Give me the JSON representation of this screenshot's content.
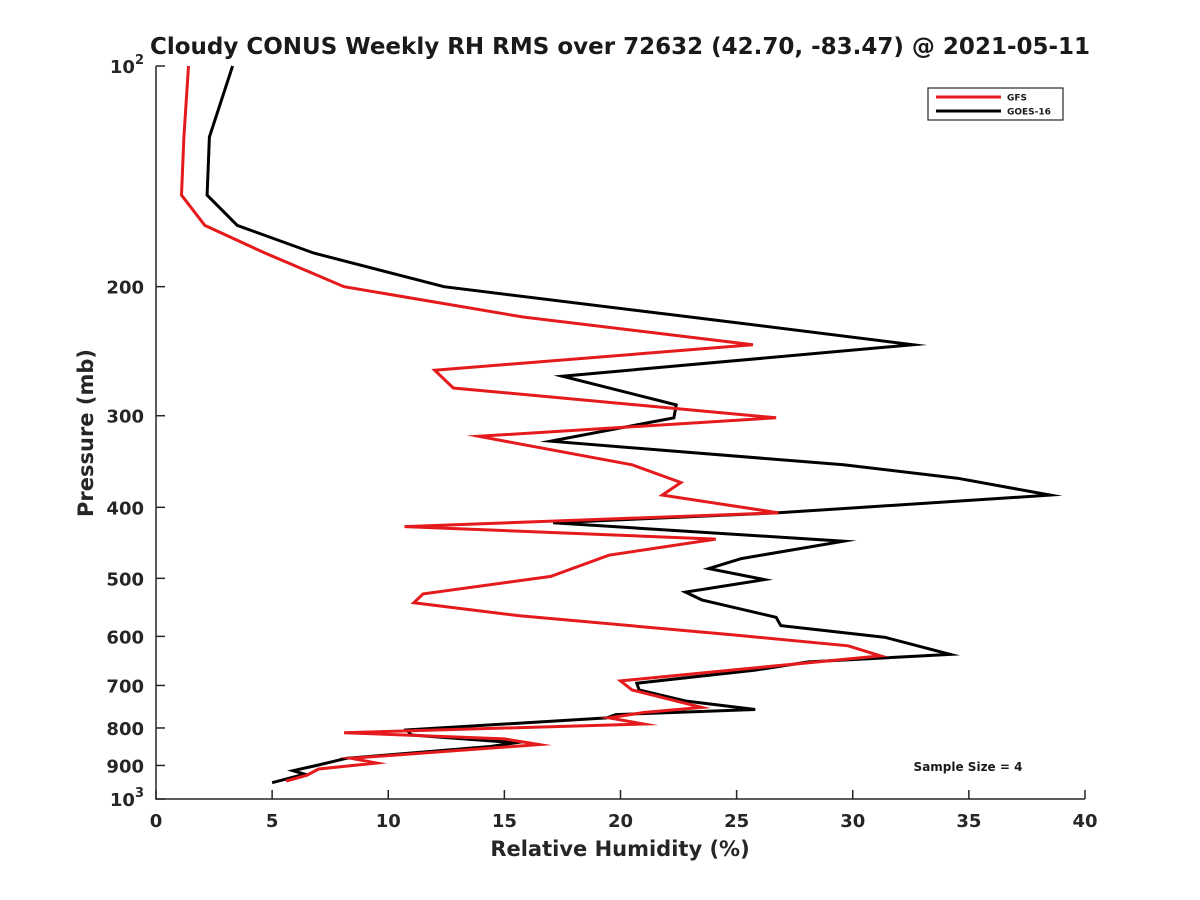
{
  "chart_data": {
    "type": "line",
    "title": "Cloudy CONUS Weekly RH RMS over 72632 (42.70, -83.47) @ 2021-05-11",
    "xlabel": "Relative Humidity (%)",
    "ylabel": "Pressure (mb)",
    "xlim": [
      0,
      40
    ],
    "ylim": [
      1000,
      100
    ],
    "y_scale": "log",
    "y_reversed": true,
    "grid": false,
    "legend_position": "top-right",
    "x_ticks": [
      0,
      5,
      10,
      15,
      20,
      25,
      30,
      35,
      40
    ],
    "y_ticks": [
      {
        "value": 100,
        "base": "10",
        "exp": "2"
      },
      {
        "value": 200,
        "label": "200"
      },
      {
        "value": 300,
        "label": "300"
      },
      {
        "value": 400,
        "label": "400"
      },
      {
        "value": 500,
        "label": "500"
      },
      {
        "value": 600,
        "label": "600"
      },
      {
        "value": 700,
        "label": "700"
      },
      {
        "value": 800,
        "label": "800"
      },
      {
        "value": 900,
        "label": "900"
      },
      {
        "value": 1000,
        "base": "10",
        "exp": "3"
      }
    ],
    "series": [
      {
        "name": "GFS",
        "color": "#e41a1c",
        "points": [
          [
            1.4,
            100
          ],
          [
            1.2,
            125
          ],
          [
            1.1,
            150
          ],
          [
            2.1,
            165
          ],
          [
            4.7,
            180
          ],
          [
            8.1,
            200
          ],
          [
            15.8,
            220
          ],
          [
            25.7,
            240
          ],
          [
            12.0,
            260
          ],
          [
            12.8,
            275
          ],
          [
            26.7,
            302
          ],
          [
            13.9,
            320
          ],
          [
            20.5,
            350
          ],
          [
            22.6,
            370
          ],
          [
            21.8,
            385
          ],
          [
            26.8,
            407
          ],
          [
            10.7,
            425
          ],
          [
            24.1,
            442
          ],
          [
            19.5,
            465
          ],
          [
            17.0,
            497
          ],
          [
            11.5,
            525
          ],
          [
            11.1,
            540
          ],
          [
            15.6,
            562
          ],
          [
            24.8,
            597
          ],
          [
            29.8,
            618
          ],
          [
            31.2,
            638
          ],
          [
            25.0,
            666
          ],
          [
            20.0,
            690
          ],
          [
            20.5,
            710
          ],
          [
            23.5,
            750
          ],
          [
            21.0,
            762
          ],
          [
            19.5,
            775
          ],
          [
            21.0,
            790
          ],
          [
            8.1,
            812
          ],
          [
            15.0,
            828
          ],
          [
            16.5,
            843
          ],
          [
            8.4,
            880
          ],
          [
            9.5,
            893
          ],
          [
            7.0,
            910
          ],
          [
            6.5,
            928
          ],
          [
            5.6,
            945
          ]
        ]
      },
      {
        "name": "GOES-16",
        "color": "#000000",
        "points": [
          [
            3.3,
            100
          ],
          [
            2.3,
            125
          ],
          [
            2.2,
            150
          ],
          [
            3.5,
            165
          ],
          [
            6.8,
            180
          ],
          [
            12.4,
            200
          ],
          [
            23.0,
            220
          ],
          [
            32.6,
            240
          ],
          [
            17.5,
            265
          ],
          [
            22.4,
            290
          ],
          [
            22.3,
            302
          ],
          [
            17.0,
            325
          ],
          [
            29.6,
            350
          ],
          [
            34.5,
            365
          ],
          [
            38.5,
            385
          ],
          [
            26.8,
            407
          ],
          [
            17.1,
            420
          ],
          [
            29.6,
            445
          ],
          [
            25.2,
            470
          ],
          [
            23.8,
            485
          ],
          [
            26.2,
            502
          ],
          [
            22.8,
            522
          ],
          [
            23.5,
            535
          ],
          [
            26.7,
            565
          ],
          [
            26.9,
            580
          ],
          [
            31.4,
            602
          ],
          [
            34.2,
            635
          ],
          [
            28.1,
            650
          ],
          [
            25.8,
            667
          ],
          [
            20.7,
            695
          ],
          [
            20.8,
            710
          ],
          [
            22.8,
            735
          ],
          [
            25.8,
            755
          ],
          [
            19.8,
            767
          ],
          [
            19.4,
            775
          ],
          [
            10.8,
            805
          ],
          [
            11.0,
            818
          ],
          [
            15.5,
            838
          ],
          [
            14.4,
            848
          ],
          [
            8.2,
            880
          ],
          [
            6.9,
            900
          ],
          [
            5.9,
            915
          ],
          [
            6.4,
            925
          ],
          [
            5.0,
            950
          ]
        ]
      }
    ],
    "annotations": [
      {
        "text": "Sample Size = 4"
      }
    ]
  }
}
